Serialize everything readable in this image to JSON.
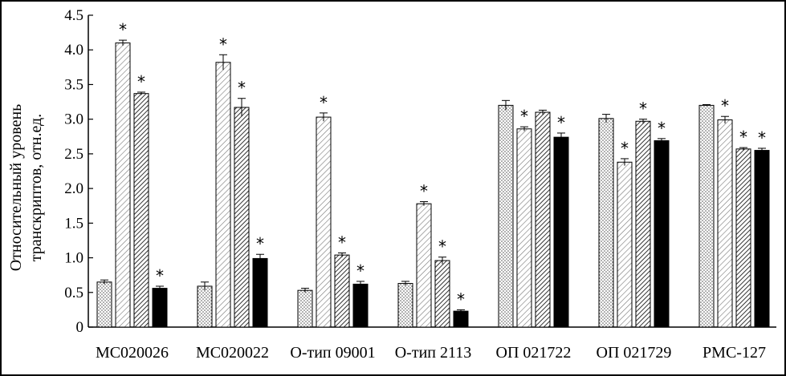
{
  "chart_data": {
    "type": "bar",
    "ylabel_line1": "Относительный уровень",
    "ylabel_line2": "транскриптов, отн.ед.",
    "ylim": [
      0,
      4.5
    ],
    "yticks": [
      "0",
      "0.5",
      "1.0",
      "1.5",
      "2.0",
      "2.5",
      "3.0",
      "3.5",
      "4.0",
      "4.5"
    ],
    "grid": false,
    "categories": [
      "МС020026",
      "МС020022",
      "О-тип 09001",
      "О-тип 2113",
      "ОП 021722",
      "ОП 021729",
      "РМС-127"
    ],
    "series": [
      {
        "values": [
          0.65,
          0.59,
          0.53,
          0.63,
          3.2,
          3.01,
          3.2
        ],
        "errors": [
          0.03,
          0.06,
          0.03,
          0.03,
          0.07,
          0.06,
          0.01
        ],
        "sig": [
          false,
          false,
          false,
          false,
          false,
          false,
          false
        ],
        "fill": "#cfcfcf"
      },
      {
        "values": [
          4.1,
          3.82,
          3.03,
          1.78,
          2.86,
          2.38,
          2.99
        ],
        "errors": [
          0.04,
          0.11,
          0.06,
          0.03,
          0.03,
          0.05,
          0.05
        ],
        "sig": [
          true,
          true,
          true,
          true,
          true,
          true,
          true
        ],
        "fill": "#e6e6e6"
      },
      {
        "values": [
          3.37,
          3.17,
          1.04,
          0.96,
          3.1,
          2.97,
          2.57
        ],
        "errors": [
          0.02,
          0.13,
          0.03,
          0.05,
          0.03,
          0.03,
          0.02
        ],
        "sig": [
          true,
          true,
          true,
          true,
          false,
          true,
          true
        ],
        "fill": "#a8a8a8"
      },
      {
        "values": [
          0.56,
          0.99,
          0.62,
          0.23,
          2.74,
          2.69,
          2.55
        ],
        "errors": [
          0.03,
          0.06,
          0.04,
          0.02,
          0.06,
          0.03,
          0.03
        ],
        "sig": [
          true,
          true,
          true,
          true,
          true,
          true,
          true
        ],
        "fill": "#000000"
      }
    ],
    "significance_mark": "*"
  }
}
